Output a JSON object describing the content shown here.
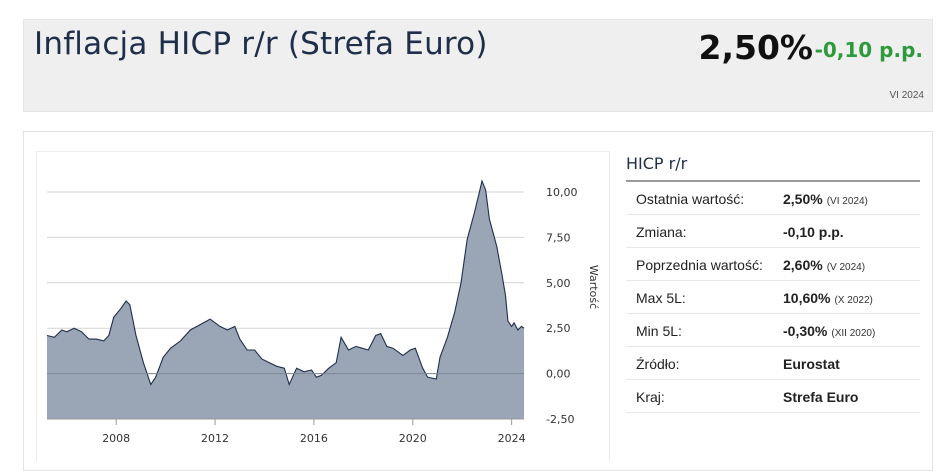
{
  "header": {
    "title": "Inflacja HICP r/r (Strefa Euro)",
    "value": "2,50%",
    "change": "-0,10 p.p.",
    "date": "VI 2024"
  },
  "sidebar": {
    "title": "HICP r/r",
    "rows": [
      {
        "label": "Ostatnia wartość:",
        "value": "2,50%",
        "note": "(VI 2024)"
      },
      {
        "label": "Zmiana:",
        "value": "-0,10 p.p.",
        "note": ""
      },
      {
        "label": "Poprzednia wartość:",
        "value": "2,60%",
        "note": "(V 2024)"
      },
      {
        "label": "Max 5L:",
        "value": "10,60%",
        "note": "(X 2022)"
      },
      {
        "label": "Min 5L:",
        "value": "-0,30%",
        "note": "(XII 2020)"
      },
      {
        "label": "Źródło:",
        "value": "Eurostat",
        "note": ""
      },
      {
        "label": "Kraj:",
        "value": "Strefa Euro",
        "note": ""
      }
    ]
  },
  "colors": {
    "area_fill": "#9aa5b5",
    "area_line": "#1f2f4a",
    "positive": "#2e9a3c"
  },
  "chart_data": {
    "type": "area",
    "title": "",
    "xlabel": "",
    "ylabel": "Wartość",
    "ylim": [
      -2.5,
      10.0
    ],
    "xlim": [
      2005.2,
      2024.5
    ],
    "x_ticks": [
      "2008",
      "2012",
      "2016",
      "2020",
      "2024"
    ],
    "y_ticks": [
      "10,00",
      "7,50",
      "5,00",
      "2,50",
      "0,00",
      "-2,50"
    ],
    "grid": true,
    "legend": "none",
    "series": [
      {
        "points": [
          [
            2005.2,
            2.1
          ],
          [
            2005.5,
            2.0
          ],
          [
            2005.8,
            2.4
          ],
          [
            2006.0,
            2.3
          ],
          [
            2006.3,
            2.5
          ],
          [
            2006.6,
            2.3
          ],
          [
            2006.9,
            1.9
          ],
          [
            2007.2,
            1.9
          ],
          [
            2007.5,
            1.8
          ],
          [
            2007.7,
            2.1
          ],
          [
            2007.9,
            3.1
          ],
          [
            2008.2,
            3.6
          ],
          [
            2008.4,
            4.0
          ],
          [
            2008.55,
            3.8
          ],
          [
            2008.8,
            2.1
          ],
          [
            2009.1,
            0.6
          ],
          [
            2009.4,
            -0.6
          ],
          [
            2009.6,
            -0.2
          ],
          [
            2009.9,
            0.9
          ],
          [
            2010.2,
            1.4
          ],
          [
            2010.6,
            1.8
          ],
          [
            2011.0,
            2.4
          ],
          [
            2011.4,
            2.7
          ],
          [
            2011.8,
            3.0
          ],
          [
            2012.2,
            2.6
          ],
          [
            2012.5,
            2.4
          ],
          [
            2012.8,
            2.6
          ],
          [
            2013.0,
            1.9
          ],
          [
            2013.3,
            1.3
          ],
          [
            2013.6,
            1.3
          ],
          [
            2013.9,
            0.8
          ],
          [
            2014.2,
            0.6
          ],
          [
            2014.5,
            0.4
          ],
          [
            2014.8,
            0.3
          ],
          [
            2015.0,
            -0.6
          ],
          [
            2015.3,
            0.3
          ],
          [
            2015.6,
            0.1
          ],
          [
            2015.9,
            0.2
          ],
          [
            2016.1,
            -0.2
          ],
          [
            2016.3,
            -0.1
          ],
          [
            2016.6,
            0.3
          ],
          [
            2016.9,
            0.6
          ],
          [
            2017.1,
            2.0
          ],
          [
            2017.4,
            1.3
          ],
          [
            2017.7,
            1.5
          ],
          [
            2017.95,
            1.4
          ],
          [
            2018.2,
            1.3
          ],
          [
            2018.5,
            2.1
          ],
          [
            2018.7,
            2.2
          ],
          [
            2018.95,
            1.5
          ],
          [
            2019.2,
            1.4
          ],
          [
            2019.6,
            1.0
          ],
          [
            2019.9,
            1.3
          ],
          [
            2020.1,
            1.4
          ],
          [
            2020.4,
            0.3
          ],
          [
            2020.6,
            -0.2
          ],
          [
            2020.95,
            -0.3
          ],
          [
            2021.1,
            0.9
          ],
          [
            2021.4,
            2.0
          ],
          [
            2021.7,
            3.4
          ],
          [
            2021.95,
            5.0
          ],
          [
            2022.2,
            7.4
          ],
          [
            2022.5,
            8.9
          ],
          [
            2022.8,
            10.6
          ],
          [
            2022.95,
            10.1
          ],
          [
            2023.1,
            8.5
          ],
          [
            2023.4,
            7.0
          ],
          [
            2023.6,
            5.5
          ],
          [
            2023.75,
            4.3
          ],
          [
            2023.85,
            2.9
          ],
          [
            2024.0,
            2.6
          ],
          [
            2024.1,
            2.8
          ],
          [
            2024.25,
            2.4
          ],
          [
            2024.4,
            2.6
          ],
          [
            2024.5,
            2.5
          ]
        ]
      }
    ]
  }
}
